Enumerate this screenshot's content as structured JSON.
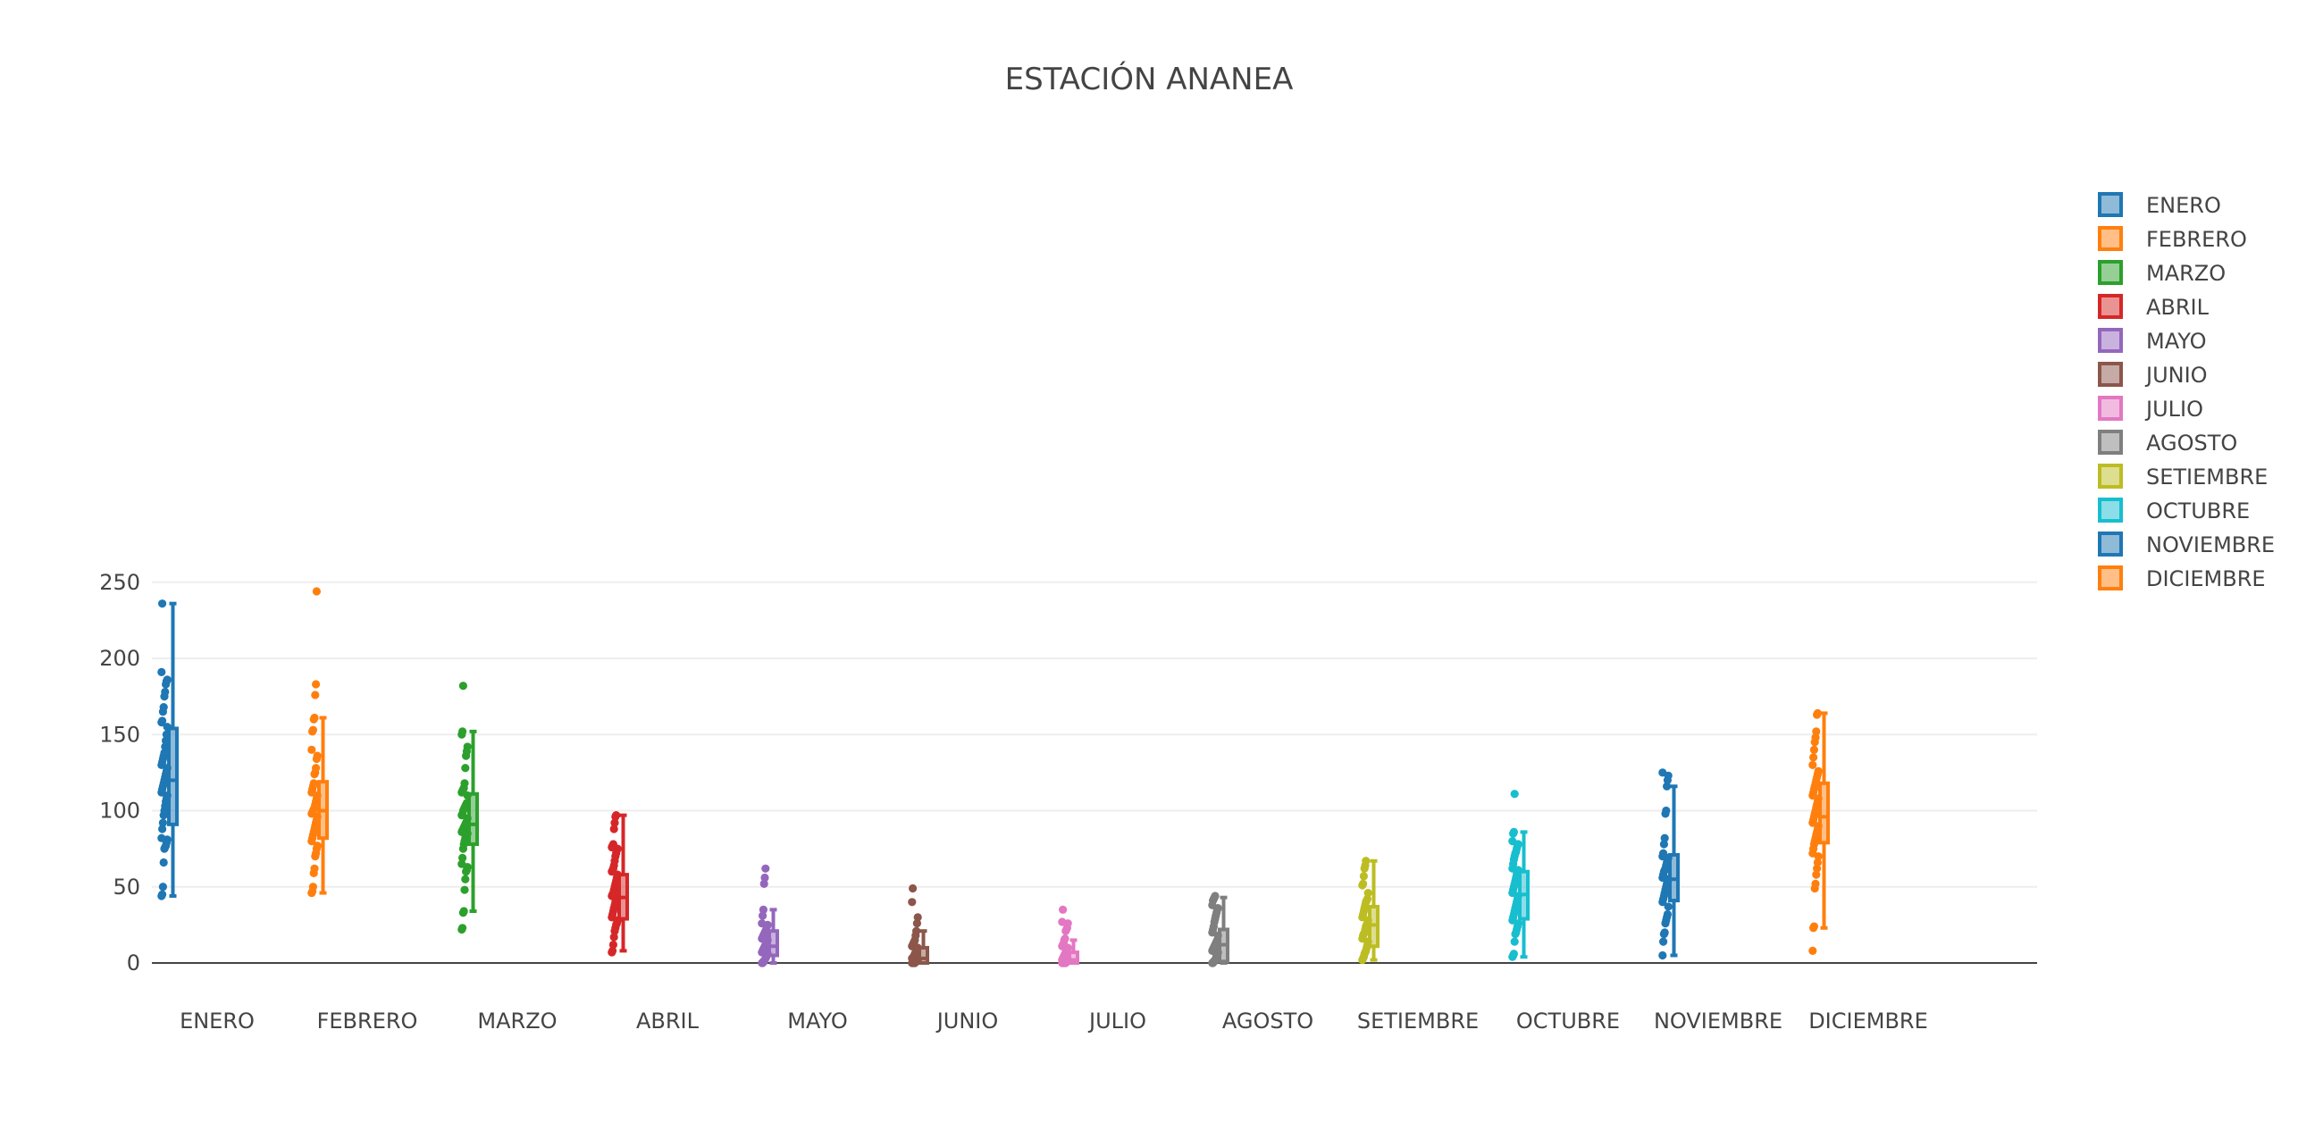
{
  "chart_data": {
    "type": "box",
    "title": "ESTACIÓN ANANEA",
    "xlabel": "",
    "ylabel": "",
    "ylim": [
      0,
      260
    ],
    "yticks": [
      0,
      50,
      100,
      150,
      200,
      250
    ],
    "grid": true,
    "legend_position": "right",
    "box_points": "all",
    "series": [
      {
        "name": "ENERO",
        "color": "#1f77b4",
        "box": {
          "min": 44,
          "q1": 91,
          "median": 120,
          "q3": 154,
          "max": 236
        },
        "points": [
          44,
          45,
          50,
          66,
          75,
          76,
          77,
          79,
          81,
          82,
          88,
          92,
          97,
          100,
          103,
          106,
          108,
          110,
          112,
          114,
          116,
          118,
          120,
          122,
          124,
          126,
          128,
          130,
          132,
          134,
          136,
          138,
          142,
          146,
          150,
          155,
          158,
          159,
          165,
          168,
          175,
          178,
          183,
          185,
          186,
          191,
          236
        ]
      },
      {
        "name": "FEBRERO",
        "color": "#ff7f0e",
        "box": {
          "min": 46,
          "q1": 82,
          "median": 100,
          "q3": 119,
          "max": 161
        },
        "points": [
          46,
          47,
          50,
          59,
          62,
          70,
          72,
          75,
          77,
          80,
          82,
          84,
          86,
          88,
          90,
          92,
          94,
          96,
          98,
          99,
          100,
          101,
          102,
          104,
          106,
          108,
          110,
          112,
          114,
          116,
          118,
          124,
          125,
          128,
          134,
          136,
          140,
          152,
          153,
          160,
          161,
          176,
          183,
          244
        ]
      },
      {
        "name": "MARZO",
        "color": "#2ca02c",
        "box": {
          "min": 34,
          "q1": 78,
          "median": 91,
          "q3": 111,
          "max": 152
        },
        "points": [
          22,
          23,
          33,
          34,
          48,
          55,
          60,
          61,
          63,
          65,
          69,
          75,
          78,
          80,
          82,
          83,
          84,
          85,
          86,
          87,
          88,
          89,
          90,
          91,
          92,
          93,
          95,
          97,
          98,
          100,
          101,
          102,
          103,
          104,
          105,
          110,
          112,
          113,
          114,
          115,
          118,
          128,
          136,
          139,
          142,
          150,
          152,
          182
        ]
      },
      {
        "name": "ABRIL",
        "color": "#d62728",
        "box": {
          "min": 8,
          "q1": 29,
          "median": 43,
          "q3": 58,
          "max": 97
        },
        "points": [
          7,
          8,
          12,
          17,
          21,
          23,
          25,
          26,
          28,
          30,
          32,
          34,
          36,
          38,
          40,
          41,
          42,
          43,
          44,
          45,
          46,
          48,
          50,
          52,
          54,
          56,
          58,
          60,
          61,
          62,
          64,
          67,
          70,
          72,
          74,
          75,
          76,
          77,
          78,
          88,
          92,
          96,
          97
        ]
      },
      {
        "name": "MAYO",
        "color": "#9467bd",
        "box": {
          "min": 0,
          "q1": 5,
          "median": 11,
          "q3": 21,
          "max": 35
        },
        "points": [
          0,
          0,
          1,
          1,
          2,
          3,
          4,
          5,
          6,
          7,
          8,
          9,
          10,
          11,
          12,
          13,
          14,
          15,
          16,
          17,
          18,
          19,
          20,
          21,
          22,
          24,
          25,
          26,
          31,
          35,
          52,
          56,
          62
        ]
      },
      {
        "name": "JUNIO",
        "color": "#8c564b",
        "box": {
          "min": 0,
          "q1": 0,
          "median": 3,
          "q3": 10,
          "max": 21
        },
        "points": [
          0,
          0,
          0,
          0,
          0,
          1,
          1,
          2,
          2,
          3,
          3,
          4,
          5,
          6,
          7,
          8,
          9,
          10,
          11,
          12,
          13,
          14,
          15,
          18,
          21,
          26,
          30,
          40,
          49
        ]
      },
      {
        "name": "JULIO",
        "color": "#e377c2",
        "box": {
          "min": 0,
          "q1": 0,
          "median": 2,
          "q3": 7,
          "max": 15
        },
        "points": [
          0,
          0,
          0,
          0,
          0,
          0,
          1,
          1,
          2,
          2,
          3,
          4,
          5,
          6,
          7,
          8,
          9,
          10,
          11,
          12,
          13,
          15,
          16,
          21,
          22,
          23,
          26,
          27,
          35
        ]
      },
      {
        "name": "AGOSTO",
        "color": "#7f7f7f",
        "box": {
          "min": 0,
          "q1": 1,
          "median": 12,
          "q3": 22,
          "max": 43
        },
        "points": [
          0,
          0,
          1,
          1,
          2,
          3,
          5,
          6,
          7,
          8,
          9,
          10,
          11,
          12,
          13,
          14,
          15,
          18,
          20,
          22,
          24,
          27,
          29,
          31,
          33,
          35,
          36,
          38,
          41,
          42,
          43,
          44
        ]
      },
      {
        "name": "SETIEMBRE",
        "color": "#bcbd22",
        "box": {
          "min": 2,
          "q1": 11,
          "median": 25,
          "q3": 37,
          "max": 67
        },
        "points": [
          2,
          3,
          4,
          6,
          7,
          8,
          10,
          12,
          14,
          16,
          18,
          19,
          20,
          22,
          24,
          25,
          26,
          28,
          30,
          32,
          34,
          36,
          38,
          40,
          41,
          42,
          46,
          51,
          52,
          57,
          62,
          64,
          67
        ]
      },
      {
        "name": "OCTUBRE",
        "color": "#17becf",
        "box": {
          "min": 4,
          "q1": 29,
          "median": 45,
          "q3": 60,
          "max": 86
        },
        "points": [
          4,
          5,
          6,
          14,
          19,
          20,
          22,
          24,
          26,
          28,
          30,
          32,
          34,
          36,
          38,
          40,
          42,
          44,
          46,
          48,
          50,
          52,
          54,
          56,
          58,
          60,
          61,
          62,
          65,
          68,
          70,
          72,
          73,
          75,
          77,
          78,
          80,
          85,
          86,
          111
        ]
      },
      {
        "name": "NOVIEMBRE",
        "color": "#1f77b4",
        "box": {
          "min": 5,
          "q1": 41,
          "median": 55,
          "q3": 71,
          "max": 116
        },
        "points": [
          5,
          14,
          19,
          20,
          26,
          28,
          30,
          32,
          37,
          40,
          42,
          44,
          46,
          48,
          50,
          52,
          54,
          55,
          56,
          58,
          60,
          61,
          62,
          64,
          66,
          68,
          69,
          70,
          72,
          78,
          82,
          98,
          100,
          116,
          120,
          123,
          125
        ]
      },
      {
        "name": "DICIEMBRE",
        "color": "#ff7f0e",
        "box": {
          "min": 23,
          "q1": 79,
          "median": 96,
          "q3": 118,
          "max": 164
        },
        "points": [
          8,
          23,
          24,
          49,
          52,
          58,
          62,
          66,
          70,
          72,
          75,
          78,
          80,
          82,
          84,
          86,
          88,
          90,
          92,
          94,
          96,
          98,
          100,
          102,
          104,
          106,
          108,
          110,
          112,
          114,
          116,
          118,
          120,
          122,
          124,
          126,
          130,
          135,
          140,
          145,
          148,
          152,
          163,
          164
        ]
      }
    ]
  }
}
